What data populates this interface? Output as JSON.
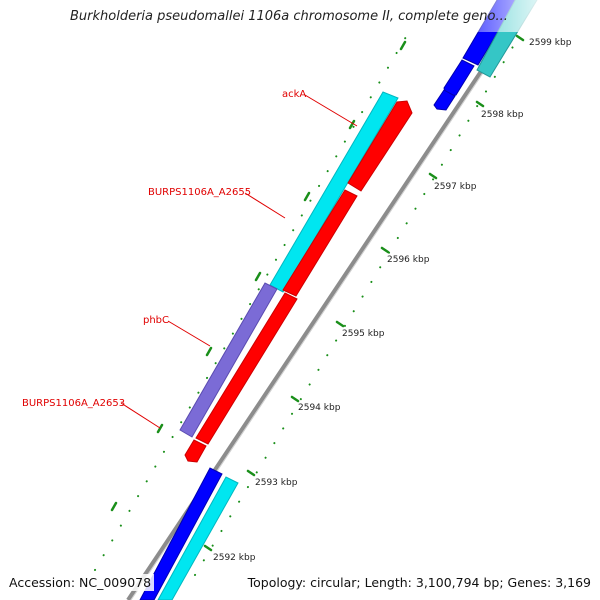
{
  "header": {
    "title": "Burkholderia pseudomallei 1106a chromosome II, complete geno..."
  },
  "footer": {
    "accession": "Accession: NC_009078",
    "summary": "Topology: circular; Length: 3,100,794 bp; Genes: 3,169"
  },
  "colors": {
    "backbone": "#8c8c8c",
    "forward_gene": "#00e6f0",
    "reverse_gene": "#ff0000",
    "purple_gene": "#7b6bd6",
    "blue_gene": "#0000ff",
    "teal_gene": "#35c6c6",
    "label_text": "#e00000",
    "tick": "#1a8f1a"
  },
  "ticks": [
    {
      "label": "2599 kbp"
    },
    {
      "label": "2598 kbp"
    },
    {
      "label": "2597 kbp"
    },
    {
      "label": "2596 kbp"
    },
    {
      "label": "2595 kbp"
    },
    {
      "label": "2594 kbp"
    },
    {
      "label": "2593 kbp"
    },
    {
      "label": "2592 kbp"
    }
  ],
  "gene_labels": [
    {
      "name": "ackA"
    },
    {
      "name": "BURPS1106A_A2655"
    },
    {
      "name": "phbC"
    },
    {
      "name": "BURPS1106A_A2653"
    }
  ]
}
